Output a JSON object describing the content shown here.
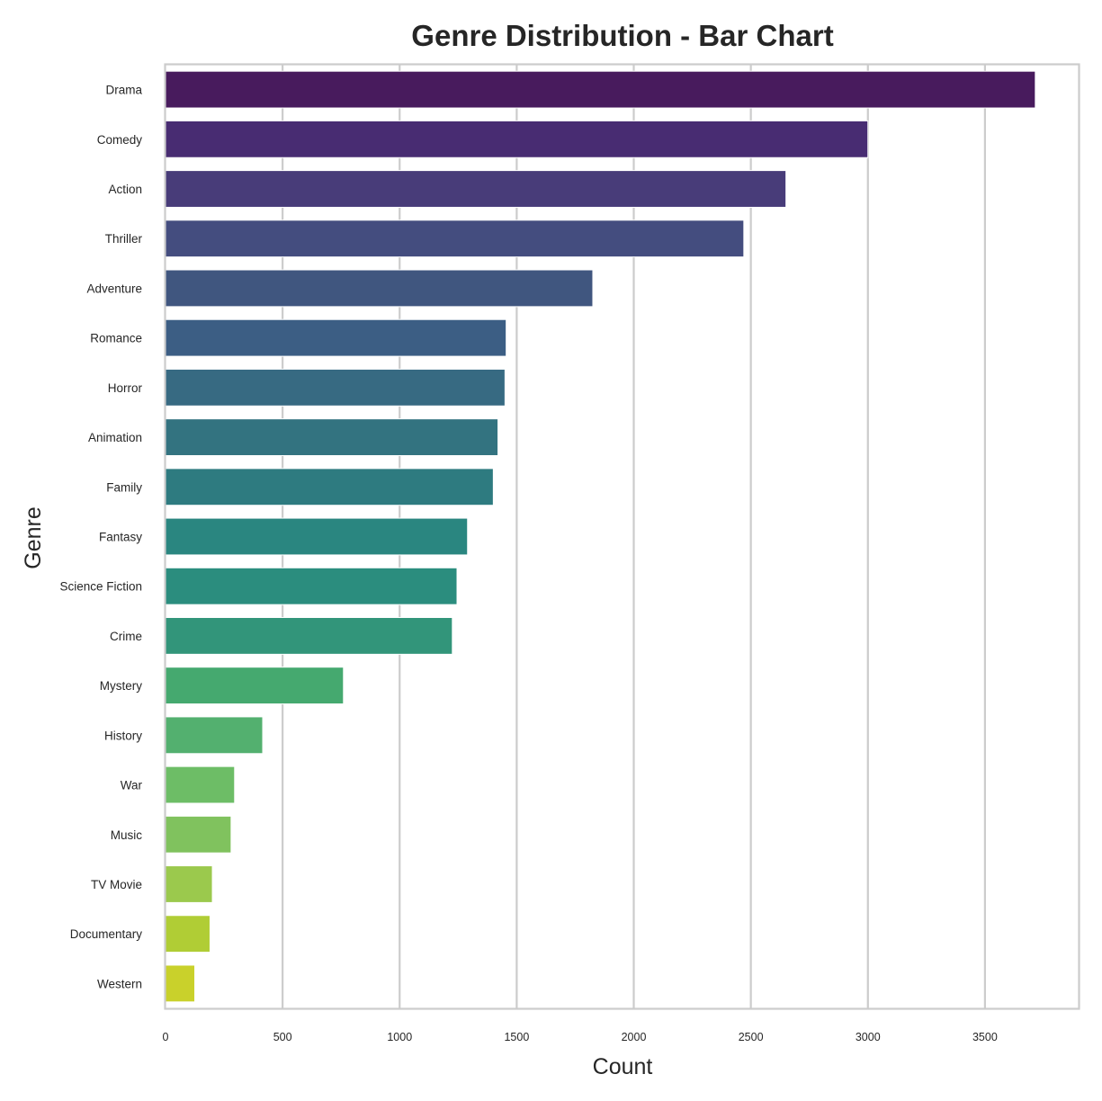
{
  "chart_data": {
    "type": "bar",
    "orientation": "horizontal",
    "title": "Genre Distribution - Bar Chart",
    "xlabel": "Count",
    "ylabel": "Genre",
    "xlim": [
      0,
      3900
    ],
    "xticks": [
      0,
      500,
      1000,
      1500,
      2000,
      2500,
      3000,
      3500
    ],
    "grid": true,
    "categories": [
      "Drama",
      "Comedy",
      "Action",
      "Thriller",
      "Adventure",
      "Romance",
      "Horror",
      "Animation",
      "Family",
      "Fantasy",
      "Science Fiction",
      "Crime",
      "Mystery",
      "History",
      "War",
      "Music",
      "TV Movie",
      "Documentary",
      "Western"
    ],
    "values": [
      3715,
      3000,
      2650,
      2470,
      1825,
      1455,
      1450,
      1420,
      1400,
      1290,
      1245,
      1225,
      760,
      415,
      295,
      280,
      200,
      190,
      125
    ],
    "colors": [
      "#481b5d",
      "#482c72",
      "#483c79",
      "#444d7f",
      "#40567f",
      "#3c5e84",
      "#376a82",
      "#337380",
      "#2e7b80",
      "#2a8680",
      "#2b8d7e",
      "#32957a",
      "#45a96f",
      "#53b06f",
      "#6dbd66",
      "#80c25e",
      "#9bc94d",
      "#b0cd35",
      "#c9d12b"
    ]
  }
}
